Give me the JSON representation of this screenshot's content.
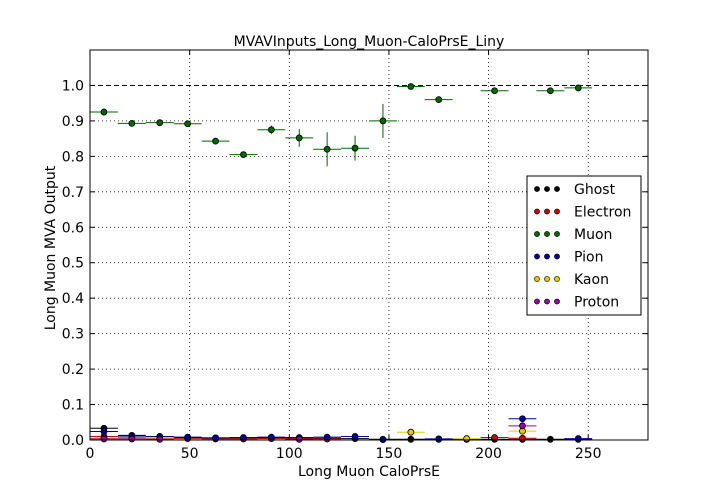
{
  "chart_data": {
    "type": "scatter",
    "title": "MVAVInputs_Long_Muon-CaloPrsE_Liny",
    "xlabel": "Long Muon CaloPrsE",
    "ylabel": "Long Muon MVA Output",
    "xlim": [
      0,
      280
    ],
    "ylim": [
      0,
      1.1
    ],
    "xticks": [
      "0",
      "50",
      "100",
      "150",
      "200",
      "250"
    ],
    "yticks": [
      "0.0",
      "0.1",
      "0.2",
      "0.3",
      "0.4",
      "0.5",
      "0.6",
      "0.7",
      "0.8",
      "0.9",
      "1.0"
    ],
    "reference_line": 1.0,
    "grid": true,
    "legend_position": "right",
    "series": [
      {
        "name": "Ghost",
        "color": "#000000",
        "points": [
          {
            "x": 7,
            "y": 0.033,
            "xerr": 7,
            "yerr": 0.004
          },
          {
            "x": 21,
            "y": 0.013,
            "xerr": 7,
            "yerr": 0.002
          },
          {
            "x": 35,
            "y": 0.01,
            "xerr": 7,
            "yerr": 0.002
          },
          {
            "x": 49,
            "y": 0.007,
            "xerr": 7,
            "yerr": 0.002
          },
          {
            "x": 63,
            "y": 0.006,
            "xerr": 7,
            "yerr": 0.002
          },
          {
            "x": 77,
            "y": 0.006,
            "xerr": 7,
            "yerr": 0.002
          },
          {
            "x": 91,
            "y": 0.006,
            "xerr": 7,
            "yerr": 0.002
          },
          {
            "x": 105,
            "y": 0.005,
            "xerr": 7,
            "yerr": 0.002
          },
          {
            "x": 119,
            "y": 0.005,
            "xerr": 7,
            "yerr": 0.002
          },
          {
            "x": 133,
            "y": 0.004,
            "xerr": 7,
            "yerr": 0.002
          },
          {
            "x": 147,
            "y": 0.002,
            "xerr": 7,
            "yerr": 0.001
          },
          {
            "x": 161,
            "y": 0.002,
            "xerr": 7,
            "yerr": 0.001
          },
          {
            "x": 175,
            "y": 0.002,
            "xerr": 7,
            "yerr": 0.001
          },
          {
            "x": 189,
            "y": 0.002,
            "xerr": 7,
            "yerr": 0.001
          },
          {
            "x": 203,
            "y": 0.002,
            "xerr": 7,
            "yerr": 0.001
          },
          {
            "x": 217,
            "y": 0.002,
            "xerr": 7,
            "yerr": 0.001
          },
          {
            "x": 231,
            "y": 0.002,
            "xerr": 7,
            "yerr": 0.001
          },
          {
            "x": 245,
            "y": 0.002,
            "xerr": 7,
            "yerr": 0.001
          }
        ]
      },
      {
        "name": "Electron",
        "color": "#cc0000",
        "points": [
          {
            "x": 7,
            "y": 0.01,
            "xerr": 7,
            "yerr": 0.002
          },
          {
            "x": 21,
            "y": 0.006,
            "xerr": 7,
            "yerr": 0.002
          },
          {
            "x": 35,
            "y": 0.004,
            "xerr": 7,
            "yerr": 0.002
          },
          {
            "x": 49,
            "y": 0.004,
            "xerr": 7,
            "yerr": 0.002
          },
          {
            "x": 63,
            "y": 0.003,
            "xerr": 7,
            "yerr": 0.002
          },
          {
            "x": 77,
            "y": 0.003,
            "xerr": 7,
            "yerr": 0.002
          },
          {
            "x": 91,
            "y": 0.004,
            "xerr": 7,
            "yerr": 0.002
          },
          {
            "x": 105,
            "y": 0.004,
            "xerr": 7,
            "yerr": 0.002
          },
          {
            "x": 119,
            "y": 0.003,
            "xerr": 7,
            "yerr": 0.002
          },
          {
            "x": 203,
            "y": 0.007,
            "xerr": 7,
            "yerr": 0.003
          },
          {
            "x": 217,
            "y": 0.005,
            "xerr": 7,
            "yerr": 0.003
          }
        ]
      },
      {
        "name": "Muon",
        "color": "#006600",
        "points": [
          {
            "x": 7,
            "y": 0.925,
            "xerr": 7,
            "yerr": 0.005
          },
          {
            "x": 21,
            "y": 0.893,
            "xerr": 7,
            "yerr": 0.005
          },
          {
            "x": 35,
            "y": 0.895,
            "xerr": 7,
            "yerr": 0.006
          },
          {
            "x": 49,
            "y": 0.892,
            "xerr": 7,
            "yerr": 0.006
          },
          {
            "x": 63,
            "y": 0.843,
            "xerr": 7,
            "yerr": 0.007
          },
          {
            "x": 77,
            "y": 0.805,
            "xerr": 7,
            "yerr": 0.006
          },
          {
            "x": 91,
            "y": 0.875,
            "xerr": 7,
            "yerr": 0.012
          },
          {
            "x": 105,
            "y": 0.852,
            "xerr": 7,
            "yerr": 0.025
          },
          {
            "x": 119,
            "y": 0.82,
            "xerr": 7,
            "yerr": 0.048
          },
          {
            "x": 133,
            "y": 0.823,
            "xerr": 7,
            "yerr": 0.035
          },
          {
            "x": 147,
            "y": 0.9,
            "xerr": 7,
            "yerr": 0.048
          },
          {
            "x": 161,
            "y": 0.997,
            "xerr": 7,
            "yerr": 0.004
          },
          {
            "x": 175,
            "y": 0.96,
            "xerr": 7,
            "yerr": 0.004
          },
          {
            "x": 203,
            "y": 0.985,
            "xerr": 7,
            "yerr": 0.004
          },
          {
            "x": 231,
            "y": 0.985,
            "xerr": 7,
            "yerr": 0.004
          },
          {
            "x": 245,
            "y": 0.993,
            "xerr": 7,
            "yerr": 0.004
          }
        ]
      },
      {
        "name": "Pion",
        "color": "#000099",
        "points": [
          {
            "x": 7,
            "y": 0.024,
            "xerr": 7,
            "yerr": 0.003
          },
          {
            "x": 21,
            "y": 0.011,
            "xerr": 7,
            "yerr": 0.002
          },
          {
            "x": 35,
            "y": 0.009,
            "xerr": 7,
            "yerr": 0.002
          },
          {
            "x": 49,
            "y": 0.008,
            "xerr": 7,
            "yerr": 0.002
          },
          {
            "x": 63,
            "y": 0.006,
            "xerr": 7,
            "yerr": 0.002
          },
          {
            "x": 77,
            "y": 0.007,
            "xerr": 7,
            "yerr": 0.002
          },
          {
            "x": 91,
            "y": 0.008,
            "xerr": 7,
            "yerr": 0.002
          },
          {
            "x": 105,
            "y": 0.007,
            "xerr": 7,
            "yerr": 0.002
          },
          {
            "x": 119,
            "y": 0.008,
            "xerr": 7,
            "yerr": 0.002
          },
          {
            "x": 133,
            "y": 0.01,
            "xerr": 7,
            "yerr": 0.003
          },
          {
            "x": 147,
            "y": 0.001,
            "xerr": 7,
            "yerr": 0.001
          },
          {
            "x": 175,
            "y": 0.003,
            "xerr": 7,
            "yerr": 0.001
          },
          {
            "x": 217,
            "y": 0.06,
            "xerr": 7,
            "yerr": 0.006
          },
          {
            "x": 245,
            "y": 0.004,
            "xerr": 7,
            "yerr": 0.001
          }
        ]
      },
      {
        "name": "Kaon",
        "color": "#e6c800",
        "points": [
          {
            "x": 7,
            "y": 0.005,
            "xerr": 7,
            "yerr": 0.002
          },
          {
            "x": 21,
            "y": 0.004,
            "xerr": 7,
            "yerr": 0.002
          },
          {
            "x": 35,
            "y": 0.003,
            "xerr": 7,
            "yerr": 0.002
          },
          {
            "x": 161,
            "y": 0.022,
            "xerr": 7,
            "yerr": 0.004
          },
          {
            "x": 189,
            "y": 0.004,
            "xerr": 7,
            "yerr": 0.002
          },
          {
            "x": 217,
            "y": 0.025,
            "xerr": 7,
            "yerr": 0.004
          }
        ]
      },
      {
        "name": "Proton",
        "color": "#990099",
        "points": [
          {
            "x": 7,
            "y": 0.003,
            "xerr": 7,
            "yerr": 0.001
          },
          {
            "x": 21,
            "y": 0.003,
            "xerr": 7,
            "yerr": 0.001
          },
          {
            "x": 35,
            "y": 0.002,
            "xerr": 7,
            "yerr": 0.001
          },
          {
            "x": 105,
            "y": 0.002,
            "xerr": 7,
            "yerr": 0.001
          },
          {
            "x": 217,
            "y": 0.04,
            "xerr": 7,
            "yerr": 0.005
          }
        ]
      }
    ]
  }
}
